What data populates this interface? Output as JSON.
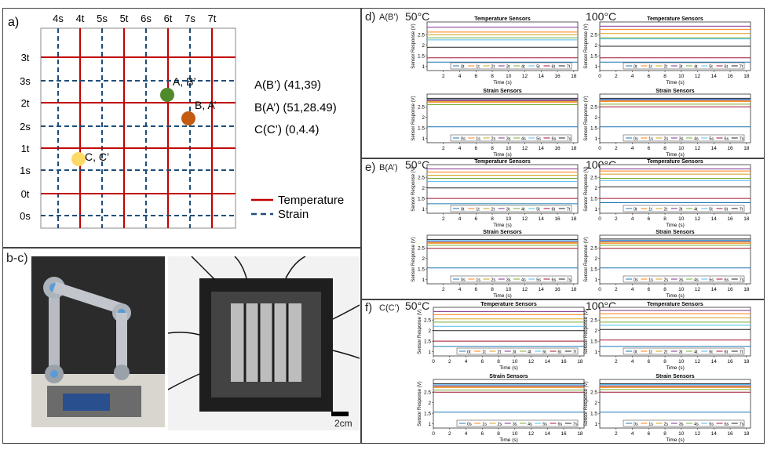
{
  "panel_a": {
    "label": "a)",
    "top_labels": [
      "4s",
      "4t",
      "5s",
      "5t",
      "6s",
      "6t",
      "7s",
      "7t"
    ],
    "left_labels": [
      "3t",
      "3s",
      "2t",
      "2s",
      "1t",
      "1s",
      "0t",
      "0s"
    ],
    "points": [
      {
        "name": "A, B’",
        "color": "#4f8a2b"
      },
      {
        "name": "B, A’",
        "color": "#c55a11"
      },
      {
        "name": "C, C’",
        "color": "#ffd966"
      }
    ],
    "coords": [
      "A(B’) (41,39)",
      "B(A’) (51,28.49)",
      "C(C’) (0,4.4)"
    ],
    "legend": [
      {
        "label": "Temperature",
        "color": "#c00000",
        "style": "solid"
      },
      {
        "label": "Strain",
        "color": "#1f4e79",
        "style": "dashed"
      }
    ]
  },
  "panel_bc": {
    "label": "b-c)",
    "scale_bar": "2cm"
  },
  "rows": [
    {
      "label": "d)",
      "sublabel": "A(B’)"
    },
    {
      "label": "e)",
      "sublabel": "B(A’)"
    },
    {
      "label": "f)",
      "sublabel": "C(C’)"
    }
  ],
  "temps": [
    "50°C",
    "100°C"
  ],
  "plot_titles": {
    "temp": "Temperature Sensors",
    "strain": "Strain Sensors"
  },
  "axis": {
    "xlabel": "Time (s)",
    "ylabel": "Sensor Response (V)"
  },
  "legend_temp": [
    "0t",
    "1t",
    "2t",
    "3t",
    "4t",
    "5t",
    "6t",
    "7t"
  ],
  "legend_strain": [
    "0s",
    "1s",
    "2s",
    "3s",
    "4s",
    "5s",
    "6s",
    "7s"
  ],
  "series_colors": [
    "#1f77b4",
    "#ff7f0e",
    "#d4a017",
    "#7e2f8e",
    "#77ac30",
    "#4dbeee",
    "#a2142f",
    "#222222"
  ],
  "chart_data": [
    {
      "id": "d-50-temp",
      "type": "line",
      "xlim": [
        0,
        18.5
      ],
      "ylim": [
        0.8,
        3.1
      ],
      "xticks": [
        2,
        4,
        6,
        8,
        10,
        12,
        14,
        16,
        18
      ],
      "yticks": [
        1,
        1.5,
        2,
        2.5
      ],
      "series_values": [
        1.2,
        2.62,
        2.5,
        2.85,
        2.35,
        2.25,
        1.4,
        1.9
      ]
    },
    {
      "id": "d-100-temp",
      "type": "line",
      "xlim": [
        0,
        18.5
      ],
      "ylim": [
        0.8,
        3.1
      ],
      "xticks": [
        0,
        2,
        4,
        6,
        8,
        10,
        12,
        14,
        16,
        18
      ],
      "yticks": [
        1,
        1.5,
        2,
        2.5
      ],
      "series_values": [
        1.2,
        2.75,
        2.55,
        2.9,
        2.35,
        2.3,
        1.4,
        1.95
      ]
    },
    {
      "id": "d-50-strain",
      "type": "line",
      "xlim": [
        0,
        18.5
      ],
      "ylim": [
        0.8,
        3.1
      ],
      "xticks": [
        2,
        4,
        6,
        8,
        10,
        12,
        14,
        16,
        18
      ],
      "yticks": [
        1,
        1.5,
        2,
        2.5
      ],
      "series_values": [
        1.55,
        2.7,
        2.75,
        2.8,
        2.6,
        2.85,
        2.82,
        2.9
      ]
    },
    {
      "id": "d-100-strain",
      "type": "line",
      "xlim": [
        0,
        18.5
      ],
      "ylim": [
        0.8,
        3.1
      ],
      "xticks": [
        0,
        2,
        4,
        6,
        8,
        10,
        12,
        14,
        16,
        18
      ],
      "yticks": [
        1,
        1.5,
        2,
        2.5
      ],
      "series_values": [
        1.55,
        2.75,
        2.8,
        2.82,
        2.62,
        2.86,
        2.5,
        2.9
      ]
    },
    {
      "id": "e-50-temp",
      "type": "line",
      "xlim": [
        0,
        18.5
      ],
      "ylim": [
        0.8,
        3.1
      ],
      "xticks": [
        2,
        4,
        6,
        8,
        10,
        12,
        14,
        16,
        18
      ],
      "yticks": [
        1,
        1.5,
        2,
        2.5
      ],
      "series_values": [
        1.25,
        2.75,
        2.6,
        2.9,
        2.45,
        2.3,
        1.5,
        2.0
      ]
    },
    {
      "id": "e-100-temp",
      "type": "line",
      "xlim": [
        0,
        18.5
      ],
      "ylim": [
        0.8,
        3.1
      ],
      "xticks": [
        0,
        2,
        4,
        6,
        8,
        10,
        12,
        14,
        16,
        18
      ],
      "yticks": [
        1,
        1.5,
        2,
        2.5
      ],
      "series_values": [
        1.3,
        2.8,
        2.65,
        2.9,
        2.45,
        2.35,
        1.5,
        2.05
      ]
    },
    {
      "id": "e-50-strain",
      "type": "line",
      "xlim": [
        0,
        18.5
      ],
      "ylim": [
        0.8,
        3.1
      ],
      "xticks": [
        2,
        4,
        6,
        8,
        10,
        12,
        14,
        16,
        18
      ],
      "yticks": [
        1,
        1.5,
        2,
        2.5
      ],
      "series_values": [
        1.55,
        2.72,
        2.75,
        2.8,
        2.62,
        2.85,
        2.48,
        2.9
      ]
    },
    {
      "id": "e-100-strain",
      "type": "line",
      "xlim": [
        0,
        18.5
      ],
      "ylim": [
        0.8,
        3.1
      ],
      "xticks": [
        0,
        2,
        4,
        6,
        8,
        10,
        12,
        14,
        16,
        18
      ],
      "yticks": [
        1,
        1.5,
        2,
        2.5
      ],
      "series_values": [
        1.55,
        2.72,
        2.77,
        2.82,
        2.62,
        2.86,
        2.48,
        2.92
      ]
    },
    {
      "id": "f-50-temp",
      "type": "line",
      "xlim": [
        0,
        18.5
      ],
      "ylim": [
        0.8,
        3.1
      ],
      "xticks": [
        0,
        2,
        4,
        6,
        8,
        10,
        12,
        14,
        16,
        18
      ],
      "yticks": [
        1,
        1.5,
        2,
        2.5
      ],
      "series_values": [
        1.25,
        2.75,
        2.55,
        2.9,
        2.4,
        2.2,
        1.5,
        2.0
      ]
    },
    {
      "id": "f-100-temp",
      "type": "line",
      "xlim": [
        0,
        18.5
      ],
      "ylim": [
        0.8,
        3.1
      ],
      "xticks": [
        2,
        4,
        6,
        8,
        10,
        12,
        14,
        16,
        18
      ],
      "yticks": [
        1,
        1.5,
        2,
        2.5
      ],
      "series_values": [
        1.25,
        2.8,
        2.6,
        2.95,
        2.4,
        2.25,
        1.55,
        2.05
      ]
    },
    {
      "id": "f-50-strain",
      "type": "line",
      "xlim": [
        0,
        18.5
      ],
      "ylim": [
        0.8,
        3.1
      ],
      "xticks": [
        0,
        2,
        4,
        6,
        8,
        10,
        12,
        14,
        16,
        18
      ],
      "yticks": [
        1,
        1.5,
        2,
        2.5
      ],
      "series_values": [
        1.55,
        2.72,
        2.75,
        2.8,
        2.6,
        2.85,
        2.5,
        2.9
      ]
    },
    {
      "id": "f-100-strain",
      "type": "line",
      "xlim": [
        0,
        18.5
      ],
      "ylim": [
        0.8,
        3.1
      ],
      "xticks": [
        2,
        4,
        6,
        8,
        10,
        12,
        14,
        16,
        18
      ],
      "yticks": [
        1,
        1.5,
        2,
        2.5
      ],
      "series_values": [
        1.55,
        2.72,
        2.76,
        2.8,
        2.62,
        2.86,
        2.5,
        2.9
      ]
    }
  ]
}
